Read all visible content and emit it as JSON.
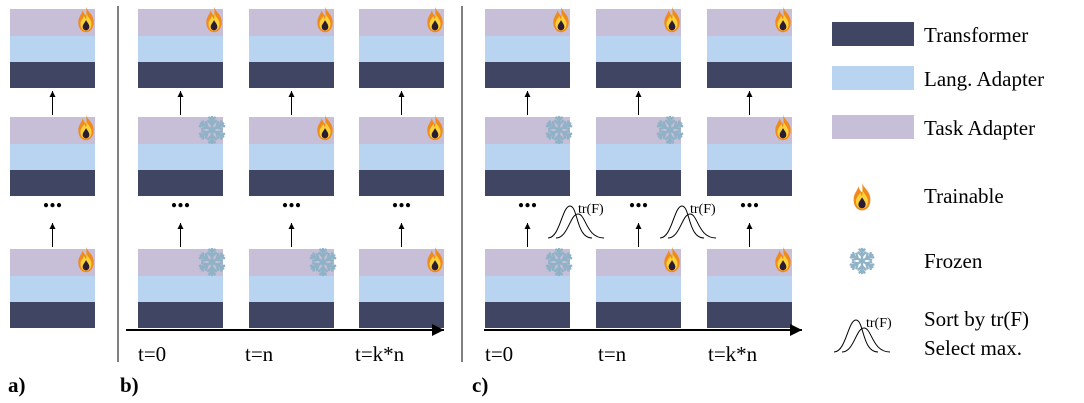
{
  "colors": {
    "transformer": "#3f4563",
    "lang_adapter": "#b8d4f1",
    "task_adapter": "#c7bed8",
    "flame_outer": "#f08a1e",
    "flame_mid": "#fbd23a",
    "flame_dark": "#2a1d33",
    "snowflake": "#8fb2c6"
  },
  "icons": {
    "trainable": "flame-icon",
    "frozen": "snowflake-icon",
    "sort": "distribution-curves-icon"
  },
  "dots": "...",
  "panels": {
    "a": {
      "label": "a)",
      "columns": [
        {
          "status": [
            "trainable",
            "trainable",
            "trainable"
          ]
        }
      ]
    },
    "b": {
      "label": "b)",
      "time_labels": [
        "t=0",
        "t=n",
        "t=k*n"
      ],
      "columns": [
        {
          "status": [
            "trainable",
            "frozen",
            "frozen"
          ]
        },
        {
          "status": [
            "trainable",
            "trainable",
            "frozen"
          ]
        },
        {
          "status": [
            "trainable",
            "trainable",
            "trainable"
          ]
        }
      ]
    },
    "c": {
      "label": "c)",
      "time_labels": [
        "t=0",
        "t=n",
        "t=k*n"
      ],
      "sort_label": "tr(F)",
      "columns": [
        {
          "status": [
            "trainable",
            "frozen",
            "frozen"
          ]
        },
        {
          "status": [
            "trainable",
            "frozen",
            "trainable"
          ]
        },
        {
          "status": [
            "trainable",
            "trainable",
            "trainable"
          ]
        }
      ]
    }
  },
  "legend": {
    "transformer": "Transformer",
    "lang_adapter": "Lang. Adapter",
    "task_adapter": "Task Adapter",
    "trainable": "Trainable",
    "frozen": "Frozen",
    "sort_line1": "Sort by tr(F)",
    "sort_line2": "Select max.",
    "sort_curve_label": "tr(F)"
  }
}
